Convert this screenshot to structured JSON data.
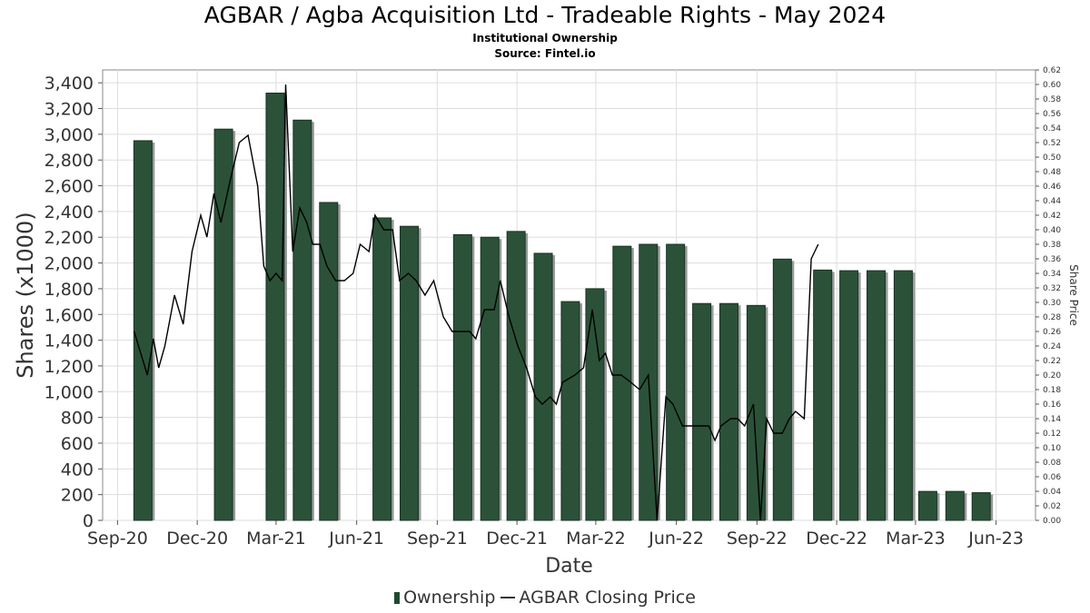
{
  "title": "AGBAR / Agba Acquisition Ltd - Tradeable Rights - May 2024",
  "subtitle": "Institutional Ownership",
  "source": "Source: Fintel.io",
  "legend": {
    "ownership": "Ownership",
    "price": "AGBAR Closing Price"
  },
  "colors": {
    "bar": "#2b5238",
    "bar_shadow": "#9a9a9a",
    "line": "#000000",
    "grid": "#dddddd"
  },
  "chart_data": {
    "type": "bar",
    "xlabel": "Date",
    "ylabel": "Shares (x1000)",
    "y2label": "Share Price",
    "x_ticks": [
      "Sep-20",
      "Dec-20",
      "Mar-21",
      "Jun-21",
      "Sep-21",
      "Dec-21",
      "Mar-22",
      "Jun-22",
      "Sep-22",
      "Dec-22",
      "Mar-23",
      "Jun-23"
    ],
    "ylim": [
      0,
      3500
    ],
    "y_ticks": [
      0,
      200,
      400,
      600,
      800,
      1000,
      1200,
      1400,
      1600,
      1800,
      2000,
      2200,
      2400,
      2600,
      2800,
      3000,
      3200,
      3400
    ],
    "y2lim": [
      0,
      0.62
    ],
    "y2_tick_step": 0.02,
    "grid": true,
    "legend_position": "bottom",
    "series": [
      {
        "name": "Ownership",
        "type": "bar",
        "x": [
          "2020-09-30",
          "2020-12-31",
          "2021-02-28",
          "2021-03-31",
          "2021-04-30",
          "2021-06-30",
          "2021-07-31",
          "2021-09-30",
          "2021-10-31",
          "2021-11-30",
          "2021-12-31",
          "2022-01-31",
          "2022-02-28",
          "2022-03-31",
          "2022-04-30",
          "2022-05-31",
          "2022-06-30",
          "2022-07-31",
          "2022-08-31",
          "2022-09-30",
          "2022-11-15",
          "2022-12-15",
          "2023-01-15",
          "2023-02-15",
          "2023-03-15",
          "2023-04-15",
          "2023-05-15"
        ],
        "values": [
          2950,
          3040,
          3320,
          3110,
          2470,
          2350,
          2285,
          2220,
          2200,
          2245,
          2075,
          1700,
          1800,
          2130,
          2145,
          2145,
          1685,
          1685,
          1670,
          2030,
          1945,
          1940,
          1940,
          1940,
          225,
          225,
          215
        ]
      },
      {
        "name": "AGBAR Closing Price",
        "type": "line",
        "points": [
          [
            "2020-09-20",
            0.26
          ],
          [
            "2020-09-25",
            0.24
          ],
          [
            "2020-09-30",
            0.22
          ],
          [
            "2020-10-05",
            0.2
          ],
          [
            "2020-10-12",
            0.25
          ],
          [
            "2020-10-18",
            0.21
          ],
          [
            "2020-10-25",
            0.24
          ],
          [
            "2020-11-05",
            0.31
          ],
          [
            "2020-11-15",
            0.27
          ],
          [
            "2020-11-25",
            0.37
          ],
          [
            "2020-12-05",
            0.42
          ],
          [
            "2020-12-12",
            0.39
          ],
          [
            "2020-12-20",
            0.45
          ],
          [
            "2020-12-28",
            0.41
          ],
          [
            "2021-01-08",
            0.47
          ],
          [
            "2021-01-18",
            0.52
          ],
          [
            "2021-01-28",
            0.53
          ],
          [
            "2021-02-08",
            0.46
          ],
          [
            "2021-02-15",
            0.35
          ],
          [
            "2021-02-22",
            0.33
          ],
          [
            "2021-03-01",
            0.34
          ],
          [
            "2021-03-08",
            0.33
          ],
          [
            "2021-03-12",
            0.6
          ],
          [
            "2021-03-20",
            0.37
          ],
          [
            "2021-03-28",
            0.43
          ],
          [
            "2021-04-05",
            0.41
          ],
          [
            "2021-04-12",
            0.38
          ],
          [
            "2021-04-20",
            0.38
          ],
          [
            "2021-04-28",
            0.35
          ],
          [
            "2021-05-08",
            0.33
          ],
          [
            "2021-05-18",
            0.33
          ],
          [
            "2021-05-28",
            0.34
          ],
          [
            "2021-06-05",
            0.38
          ],
          [
            "2021-06-15",
            0.37
          ],
          [
            "2021-06-22",
            0.42
          ],
          [
            "2021-07-02",
            0.4
          ],
          [
            "2021-07-12",
            0.4
          ],
          [
            "2021-07-20",
            0.33
          ],
          [
            "2021-07-30",
            0.34
          ],
          [
            "2021-08-08",
            0.33
          ],
          [
            "2021-08-18",
            0.31
          ],
          [
            "2021-08-28",
            0.33
          ],
          [
            "2021-09-08",
            0.28
          ],
          [
            "2021-09-18",
            0.26
          ],
          [
            "2021-09-25",
            0.26
          ],
          [
            "2021-10-08",
            0.26
          ],
          [
            "2021-10-15",
            0.25
          ],
          [
            "2021-10-25",
            0.29
          ],
          [
            "2021-11-05",
            0.29
          ],
          [
            "2021-11-12",
            0.33
          ],
          [
            "2021-11-22",
            0.28
          ],
          [
            "2021-12-02",
            0.24
          ],
          [
            "2021-12-12",
            0.21
          ],
          [
            "2021-12-22",
            0.17
          ],
          [
            "2021-12-30",
            0.16
          ],
          [
            "2022-01-08",
            0.17
          ],
          [
            "2022-01-15",
            0.16
          ],
          [
            "2022-01-22",
            0.19
          ],
          [
            "2022-02-05",
            0.2
          ],
          [
            "2022-02-15",
            0.21
          ],
          [
            "2022-02-25",
            0.29
          ],
          [
            "2022-03-05",
            0.22
          ],
          [
            "2022-03-12",
            0.23
          ],
          [
            "2022-03-20",
            0.2
          ],
          [
            "2022-03-30",
            0.2
          ],
          [
            "2022-04-10",
            0.19
          ],
          [
            "2022-04-20",
            0.18
          ],
          [
            "2022-04-30",
            0.2
          ],
          [
            "2022-05-10",
            0.0
          ],
          [
            "2022-05-20",
            0.17
          ],
          [
            "2022-05-28",
            0.16
          ],
          [
            "2022-06-08",
            0.13
          ],
          [
            "2022-06-18",
            0.13
          ],
          [
            "2022-06-28",
            0.13
          ],
          [
            "2022-07-08",
            0.13
          ],
          [
            "2022-07-15",
            0.11
          ],
          [
            "2022-07-22",
            0.13
          ],
          [
            "2022-08-02",
            0.14
          ],
          [
            "2022-08-10",
            0.14
          ],
          [
            "2022-08-18",
            0.13
          ],
          [
            "2022-08-28",
            0.16
          ],
          [
            "2022-09-05",
            0.0
          ],
          [
            "2022-09-12",
            0.14
          ],
          [
            "2022-09-20",
            0.12
          ],
          [
            "2022-09-30",
            0.12
          ],
          [
            "2022-10-08",
            0.14
          ],
          [
            "2022-10-15",
            0.15
          ],
          [
            "2022-10-25",
            0.14
          ],
          [
            "2022-11-02",
            0.36
          ],
          [
            "2022-11-10",
            0.38
          ]
        ]
      }
    ]
  }
}
